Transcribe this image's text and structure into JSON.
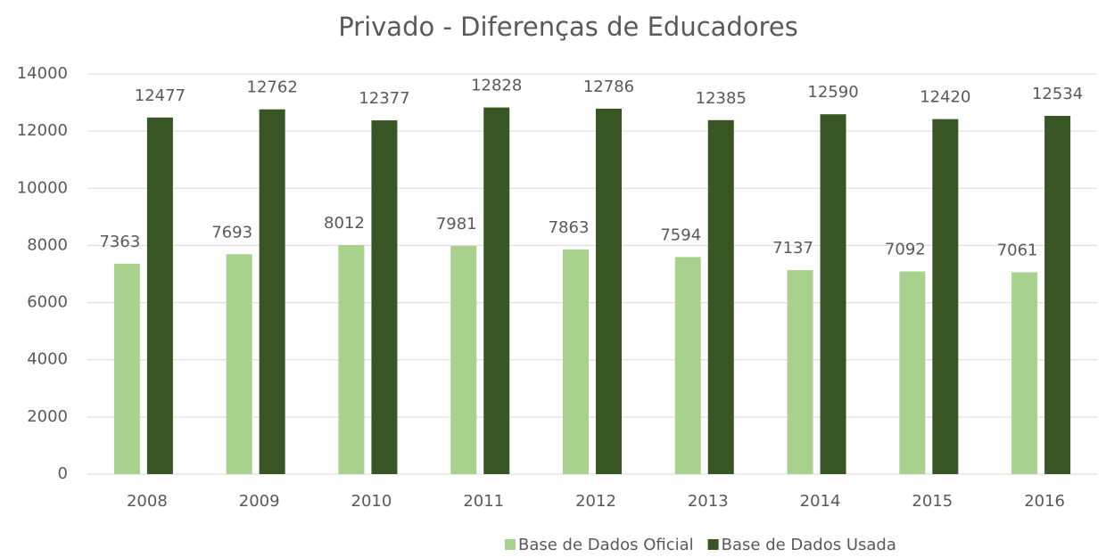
{
  "chart_data": {
    "type": "bar",
    "title": "Privado - Diferenças de Educadores",
    "categories": [
      "2008",
      "2009",
      "2010",
      "2011",
      "2012",
      "2013",
      "2014",
      "2015",
      "2016"
    ],
    "series": [
      {
        "name": "Base de Dados Oficial",
        "color": "#a9d18e",
        "values": [
          7363,
          7693,
          8012,
          7981,
          7863,
          7594,
          7137,
          7092,
          7061
        ]
      },
      {
        "name": "Base de Dados Usada",
        "color": "#375623",
        "values": [
          12477,
          12762,
          12377,
          12828,
          12786,
          12385,
          12590,
          12420,
          12534
        ]
      }
    ],
    "ylim": [
      0,
      14000
    ],
    "yticks": [
      0,
      2000,
      4000,
      6000,
      8000,
      10000,
      12000,
      14000
    ],
    "grid": true,
    "legend": "bottom"
  }
}
